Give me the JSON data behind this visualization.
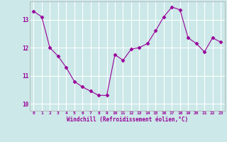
{
  "x": [
    0,
    1,
    2,
    3,
    4,
    5,
    6,
    7,
    8,
    9,
    10,
    11,
    12,
    13,
    14,
    15,
    16,
    17,
    18,
    19,
    20,
    21,
    22,
    23
  ],
  "y": [
    13.3,
    13.1,
    12.0,
    11.7,
    11.3,
    10.8,
    10.6,
    10.45,
    10.3,
    10.3,
    11.75,
    11.55,
    11.95,
    12.0,
    12.15,
    12.6,
    13.1,
    13.45,
    13.35,
    12.35,
    12.15,
    11.85,
    12.35,
    12.2
  ],
  "line_color": "#990099",
  "marker": "D",
  "marker_size": 2.5,
  "bg_color": "#cce8e8",
  "grid_color": "#ffffff",
  "xlabel": "Windchill (Refroidissement éolien,°C)",
  "xlabel_color": "#990099",
  "tick_color": "#990099",
  "ylabel_ticks": [
    10,
    11,
    12,
    13
  ],
  "xlim": [
    -0.5,
    23.5
  ],
  "ylim": [
    9.75,
    13.65
  ],
  "figsize": [
    3.2,
    2.0
  ],
  "dpi": 100
}
